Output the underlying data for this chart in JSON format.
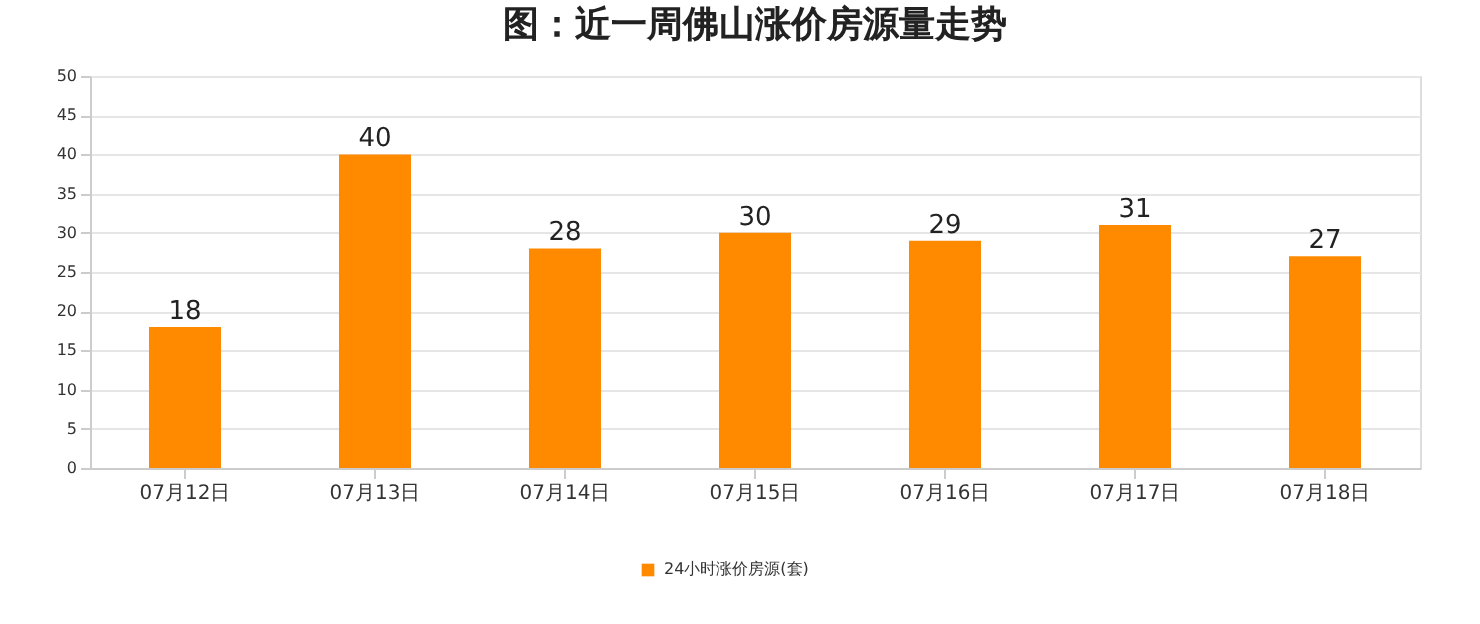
{
  "chart_data": {
    "type": "bar",
    "title": "图：近一周佛山涨价房源量走势",
    "categories": [
      "07月12日",
      "07月13日",
      "07月14日",
      "07月15日",
      "07月16日",
      "07月17日",
      "07月18日"
    ],
    "series": [
      {
        "name": "24小时涨价房源(套)",
        "color": "#ff8a00",
        "values": [
          18,
          40,
          28,
          30,
          29,
          31,
          27
        ]
      }
    ],
    "ylim": [
      0,
      50
    ],
    "yticks": [
      0,
      5,
      10,
      15,
      20,
      25,
      30,
      35,
      40,
      45,
      50
    ],
    "grid": "y",
    "legend": "bottom",
    "data_labels": true
  }
}
